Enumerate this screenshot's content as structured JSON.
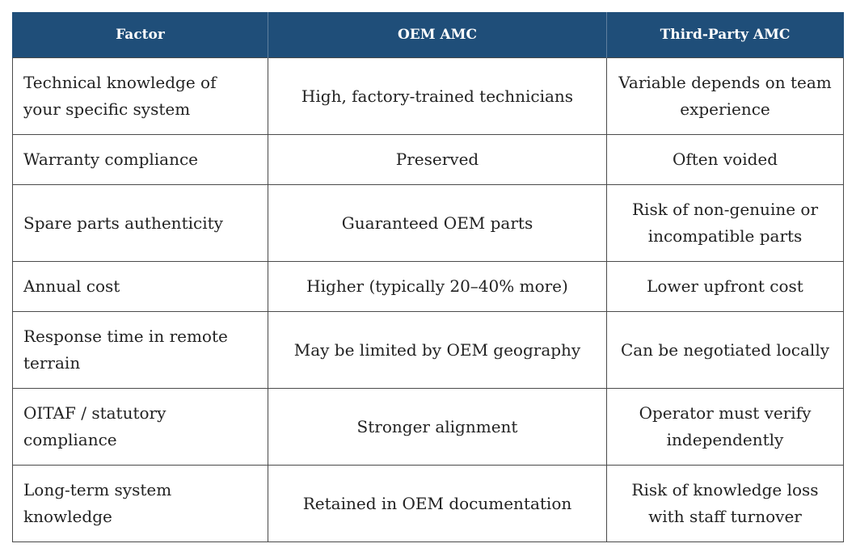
{
  "table": {
    "headers": {
      "factor": "Factor",
      "oem": "OEM AMC",
      "third_party": "Third-Party AMC"
    },
    "rows": [
      {
        "factor": "Technical knowledge of your specific system",
        "oem": "High, factory-trained technicians",
        "third_party": "Variable depends on team experience"
      },
      {
        "factor": "Warranty compliance",
        "oem": "Preserved",
        "third_party": "Often voided"
      },
      {
        "factor": "Spare parts authenticity",
        "oem": "Guaranteed OEM parts",
        "third_party": "Risk of non-genuine or incompatible parts"
      },
      {
        "factor": "Annual cost",
        "oem": "Higher (typically 20–40% more)",
        "third_party": "Lower upfront cost"
      },
      {
        "factor": "Response time in remote terrain",
        "oem": "May be limited by OEM geography",
        "third_party": "Can be negotiated locally"
      },
      {
        "factor": "OITAF / statutory compliance",
        "oem": "Stronger alignment",
        "third_party": "Operator must verify independently"
      },
      {
        "factor": "Long-term system knowledge",
        "oem": "Retained in OEM documentation",
        "third_party": "Risk of knowledge loss with staff turnover"
      }
    ]
  },
  "colors": {
    "header_background": "#1f4e79",
    "header_text": "#ffffff",
    "border": "#4a4a4a",
    "body_text": "#222222"
  }
}
